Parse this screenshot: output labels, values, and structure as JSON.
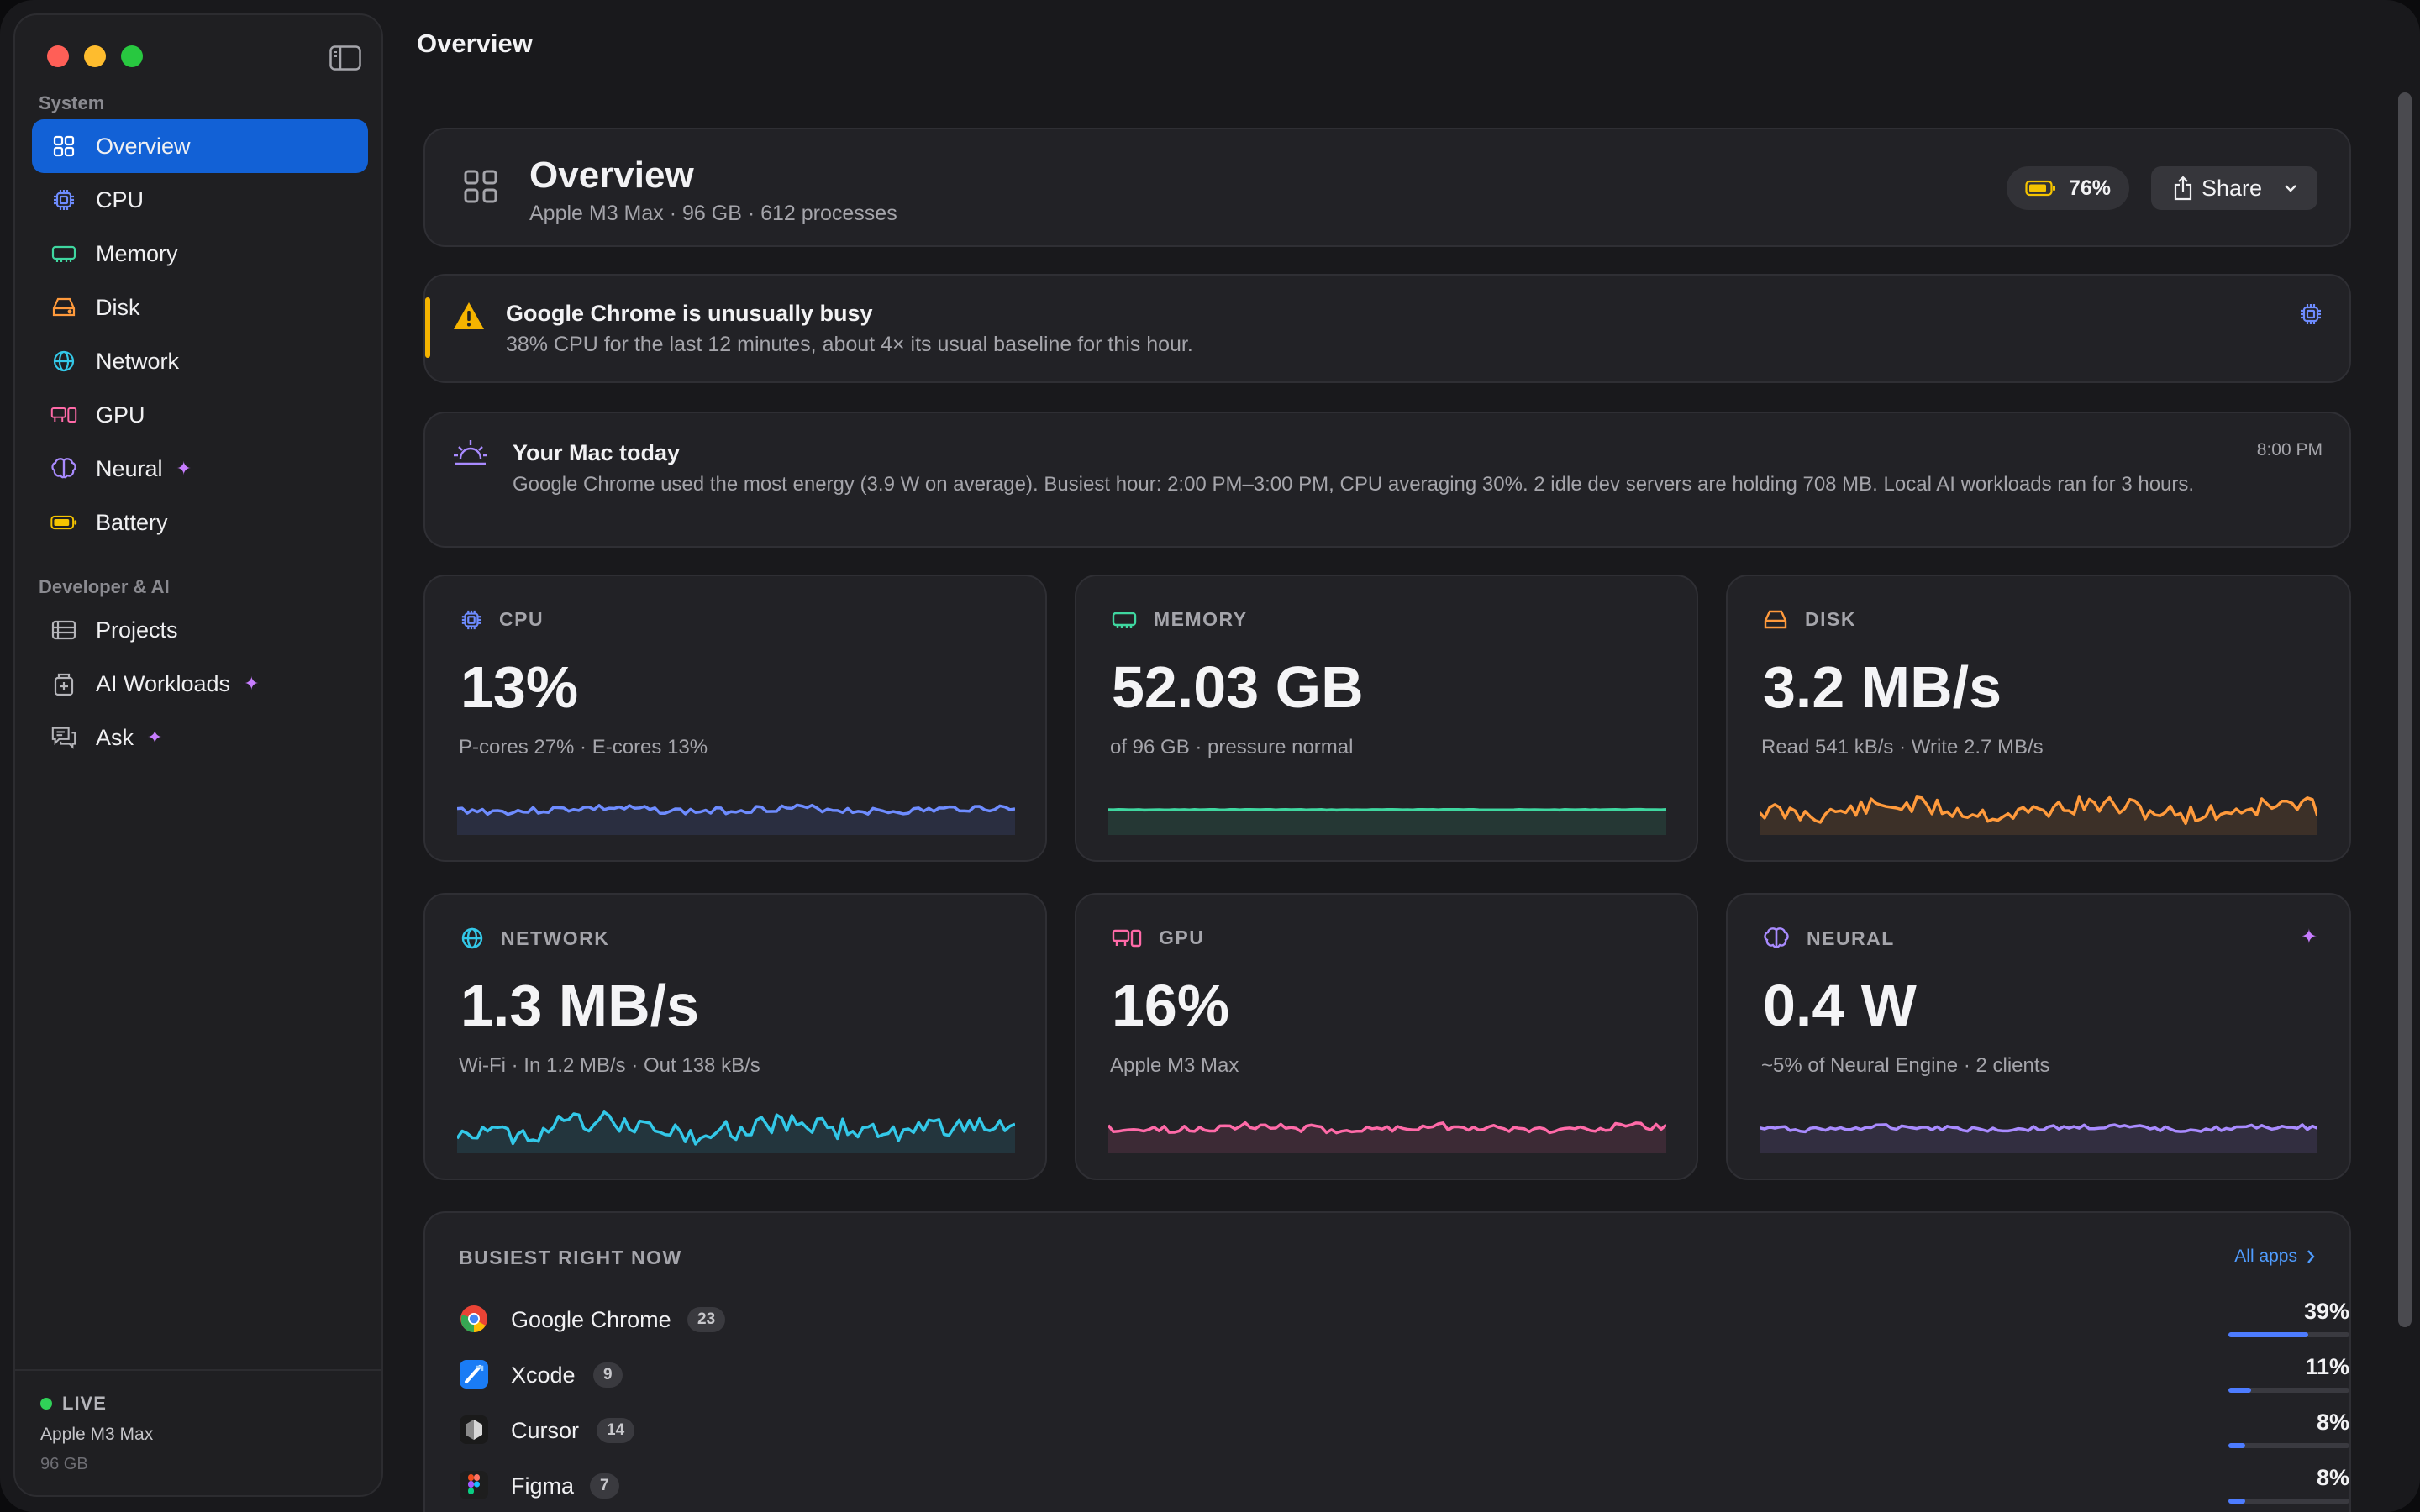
{
  "window": {
    "title": "Overview"
  },
  "sidebar": {
    "section_system": "System",
    "section_dev": "Developer & AI",
    "items": [
      {
        "label": "Overview",
        "icon": "grid-icon",
        "active": true
      },
      {
        "label": "CPU",
        "icon": "cpu-icon"
      },
      {
        "label": "Memory",
        "icon": "memory-icon"
      },
      {
        "label": "Disk",
        "icon": "disk-icon"
      },
      {
        "label": "Network",
        "icon": "globe-icon"
      },
      {
        "label": "GPU",
        "icon": "gpu-icon"
      },
      {
        "label": "Neural",
        "icon": "brain-icon",
        "sparkle": true
      },
      {
        "label": "Battery",
        "icon": "battery-icon"
      },
      {
        "label": "Projects",
        "icon": "projects-icon"
      },
      {
        "label": "AI Workloads",
        "icon": "ai-workloads-icon",
        "sparkle": true
      },
      {
        "label": "Ask",
        "icon": "chat-icon",
        "sparkle": true
      }
    ],
    "footer": {
      "live": "LIVE",
      "chip": "Apple M3 Max",
      "memory": "96 GB"
    }
  },
  "header": {
    "title": "Overview",
    "subtitle": "Apple M3 Max · 96 GB · 612 processes",
    "battery": "76%",
    "share": "Share"
  },
  "alert": {
    "title": "Google Chrome is unusually busy",
    "body": "38% CPU for the last 12 minutes, about 4× its usual baseline for this hour."
  },
  "today": {
    "title": "Your Mac today",
    "time": "8:00 PM",
    "body": "Google Chrome used the most energy (3.9 W on average). Busiest hour: 2:00 PM–3:00 PM, CPU averaging 30%. 2 idle dev servers are holding 708 MB. Local AI workloads ran for 3 hours."
  },
  "metrics": [
    {
      "label": "CPU",
      "value": "13%",
      "sub": "P-cores 27% · E-cores 13%",
      "color": "#6e8cff",
      "icon": "cpu-icon"
    },
    {
      "label": "MEMORY",
      "value": "52.03 GB",
      "sub": "of 96 GB · pressure normal",
      "color": "#3fd7a0",
      "icon": "memory-icon"
    },
    {
      "label": "DISK",
      "value": "3.2 MB/s",
      "sub": "Read 541 kB/s · Write 2.7 MB/s",
      "color": "#ff9a3c",
      "icon": "disk-icon"
    },
    {
      "label": "NETWORK",
      "value": "1.3 MB/s",
      "sub": "Wi-Fi · In 1.2 MB/s · Out 138 kB/s",
      "color": "#33c8e8",
      "icon": "globe-icon"
    },
    {
      "label": "GPU",
      "value": "16%",
      "sub": "Apple M3 Max",
      "color": "#ff6aa8",
      "icon": "gpu-icon"
    },
    {
      "label": "NEURAL",
      "value": "0.4 W",
      "sub": "~5% of Neural Engine · 2 clients",
      "color": "#a98bff",
      "icon": "brain-icon"
    }
  ],
  "busiest": {
    "title": "BUSIEST RIGHT NOW",
    "link": "All apps",
    "apps": [
      {
        "name": "Google Chrome",
        "count": "23",
        "pct": "39%",
        "value": 0.39,
        "icon": "chrome-icon"
      },
      {
        "name": "Xcode",
        "count": "9",
        "pct": "11%",
        "value": 0.11,
        "icon": "xcode-icon"
      },
      {
        "name": "Cursor",
        "count": "14",
        "pct": "8%",
        "value": 0.08,
        "icon": "cursor-icon"
      },
      {
        "name": "Figma",
        "count": "7",
        "pct": "8%",
        "value": 0.08,
        "icon": "figma-icon"
      }
    ]
  }
}
